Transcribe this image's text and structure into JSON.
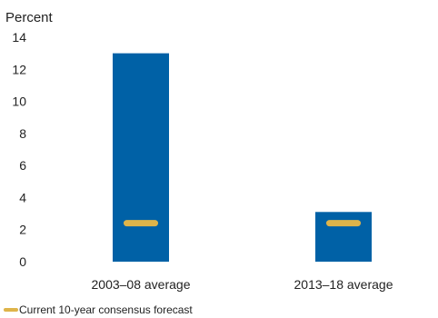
{
  "chart_data": {
    "type": "bar",
    "y_unit_label": "Percent",
    "categories": [
      "2003–08 average",
      "2013–18 average"
    ],
    "series": [
      {
        "values": [
          13.0,
          3.1
        ]
      }
    ],
    "overlay": {
      "name": "Current 10-year consensus forecast",
      "values": [
        2.4,
        2.4
      ]
    },
    "ylim": [
      0,
      14
    ],
    "yticks": [
      "0",
      "2",
      "4",
      "6",
      "8",
      "10",
      "12",
      "14"
    ],
    "grid": false,
    "legend": "bottom-left",
    "colors": {
      "bar": "#0061a6",
      "overlay": "#deb44a"
    }
  }
}
